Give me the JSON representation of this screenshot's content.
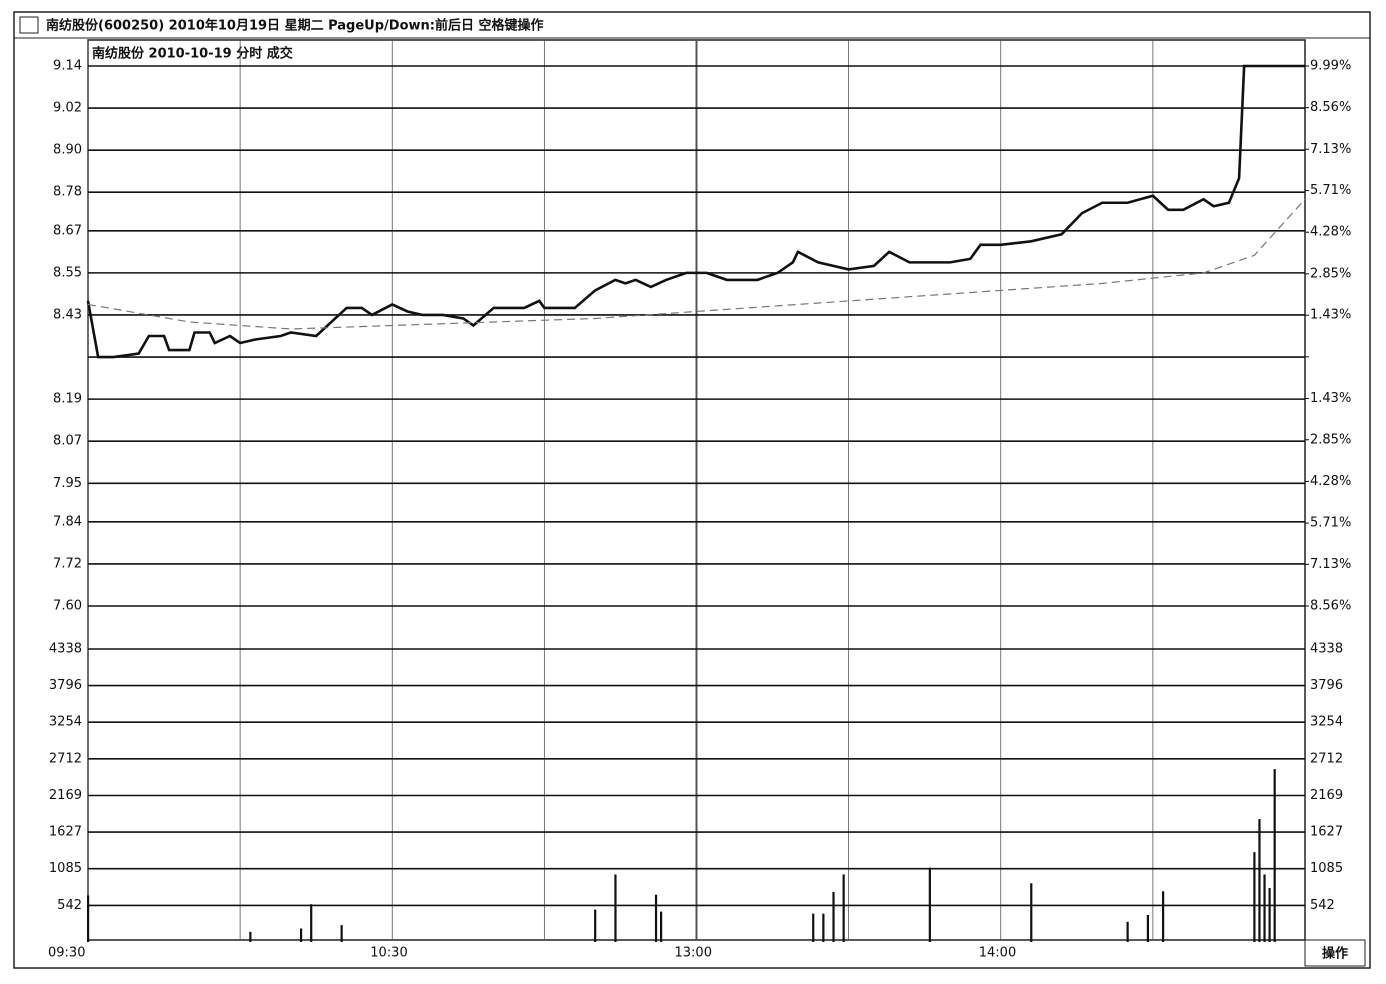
{
  "header": {
    "title": "南纺股份(600250) 2010年10月19日 星期二 PageUp/Down:前后日 空格键操作",
    "subtitle": "南纺股份  2010-10-19 分时  成交"
  },
  "footer": {
    "button": "操作"
  },
  "chart_data": [
    {
      "type": "line",
      "x": [
        0,
        2,
        5,
        10,
        12,
        15,
        16,
        20,
        21,
        24,
        25,
        28,
        30,
        33,
        38,
        40,
        45,
        48,
        51,
        54,
        56,
        60,
        63,
        66,
        70,
        74,
        76,
        80,
        86,
        89,
        90,
        96,
        100,
        104,
        106,
        108,
        111,
        114,
        118,
        122,
        126,
        132,
        136,
        139,
        140,
        144,
        150,
        155,
        158,
        162,
        170,
        174,
        176,
        180,
        186,
        192,
        196,
        200,
        205,
        210,
        213,
        216,
        220,
        222,
        225,
        227,
        228,
        232,
        240
      ],
      "series": [
        {
          "color": "#111111",
          "values": [
            8.47,
            8.31,
            8.31,
            8.32,
            8.37,
            8.37,
            8.33,
            8.33,
            8.38,
            8.38,
            8.35,
            8.37,
            8.35,
            8.36,
            8.37,
            8.38,
            8.37,
            8.41,
            8.45,
            8.45,
            8.43,
            8.46,
            8.44,
            8.43,
            8.43,
            8.42,
            8.4,
            8.45,
            8.45,
            8.47,
            8.45,
            8.45,
            8.5,
            8.53,
            8.52,
            8.53,
            8.51,
            8.53,
            8.55,
            8.55,
            8.53,
            8.53,
            8.55,
            8.58,
            8.61,
            8.58,
            8.56,
            8.57,
            8.61,
            8.58,
            8.58,
            8.59,
            8.63,
            8.63,
            8.64,
            8.66,
            8.72,
            8.75,
            8.75,
            8.77,
            8.73,
            8.73,
            8.76,
            8.74,
            8.75,
            8.82,
            9.14,
            9.14,
            9.14
          ]
        },
        {
          "color": "#777777",
          "x": [
            0,
            20,
            40,
            60,
            80,
            100,
            120,
            140,
            160,
            180,
            200,
            220,
            230,
            240
          ],
          "values": [
            8.46,
            8.41,
            8.39,
            8.4,
            8.41,
            8.42,
            8.44,
            8.46,
            8.48,
            8.5,
            8.52,
            8.55,
            8.6,
            8.76
          ]
        }
      ],
      "xlim": [
        0,
        240
      ],
      "xticks": [
        {
          "value": 0,
          "label": "09:30"
        },
        {
          "value": 30,
          "label": null
        },
        {
          "value": 60,
          "label": "10:30"
        },
        {
          "value": 90,
          "label": null
        },
        {
          "value": 120,
          "label": "13:00"
        },
        {
          "value": 150,
          "label": null
        },
        {
          "value": 180,
          "label": "14:00"
        },
        {
          "value": 210,
          "label": null
        }
      ],
      "ylim": [
        7.6,
        9.14
      ],
      "yticks": [
        9.14,
        9.02,
        {
          "value": 8.9,
          "label": "8.90"
        },
        8.78,
        8.67,
        8.55,
        8.43,
        {
          "value": 8.31,
          "label": null
        },
        8.19,
        8.07,
        7.95,
        7.84,
        7.72,
        {
          "value": 7.6,
          "label": "7.60"
        }
      ],
      "y2lim": [
        -8.56,
        9.99
      ],
      "y2ticks": [
        {
          "value": 9.99,
          "label": "9.99%"
        },
        {
          "value": 8.56,
          "label": "8.56%"
        },
        {
          "value": 7.13,
          "label": "7.13%"
        },
        {
          "value": 5.71,
          "label": "5.71%"
        },
        {
          "value": 4.28,
          "label": "4.28%"
        },
        {
          "value": 2.85,
          "label": "2.85%"
        },
        {
          "value": 1.43,
          "label": "1.43%"
        },
        {
          "value": 0,
          "label": null
        },
        {
          "value": -1.43,
          "label": "1.43%"
        },
        {
          "value": -2.85,
          "label": "2.85%"
        },
        {
          "value": -4.28,
          "label": "4.28%"
        },
        {
          "value": -5.71,
          "label": "5.71%"
        },
        {
          "value": -7.13,
          "label": "7.13%"
        },
        {
          "value": -8.56,
          "label": "8.56%"
        }
      ],
      "grid": true
    },
    {
      "type": "bar",
      "x": [
        0,
        32,
        42,
        44,
        50,
        100,
        104,
        112,
        113,
        143,
        145,
        147,
        149,
        166,
        186,
        205,
        209,
        212,
        230,
        231,
        232,
        233,
        234
      ],
      "values": [
        690,
        150,
        200,
        560,
        250,
        480,
        1000,
        700,
        450,
        420,
        420,
        740,
        1000,
        1100,
        870,
        300,
        400,
        750,
        1330,
        1820,
        1000,
        800,
        2560
      ],
      "color": "#111111",
      "xlim": [
        0,
        240
      ],
      "ylim": [
        0,
        4338
      ],
      "yticks": [
        4338,
        3796,
        3254,
        2712,
        2169,
        1627,
        1085,
        542
      ],
      "grid": true
    }
  ]
}
